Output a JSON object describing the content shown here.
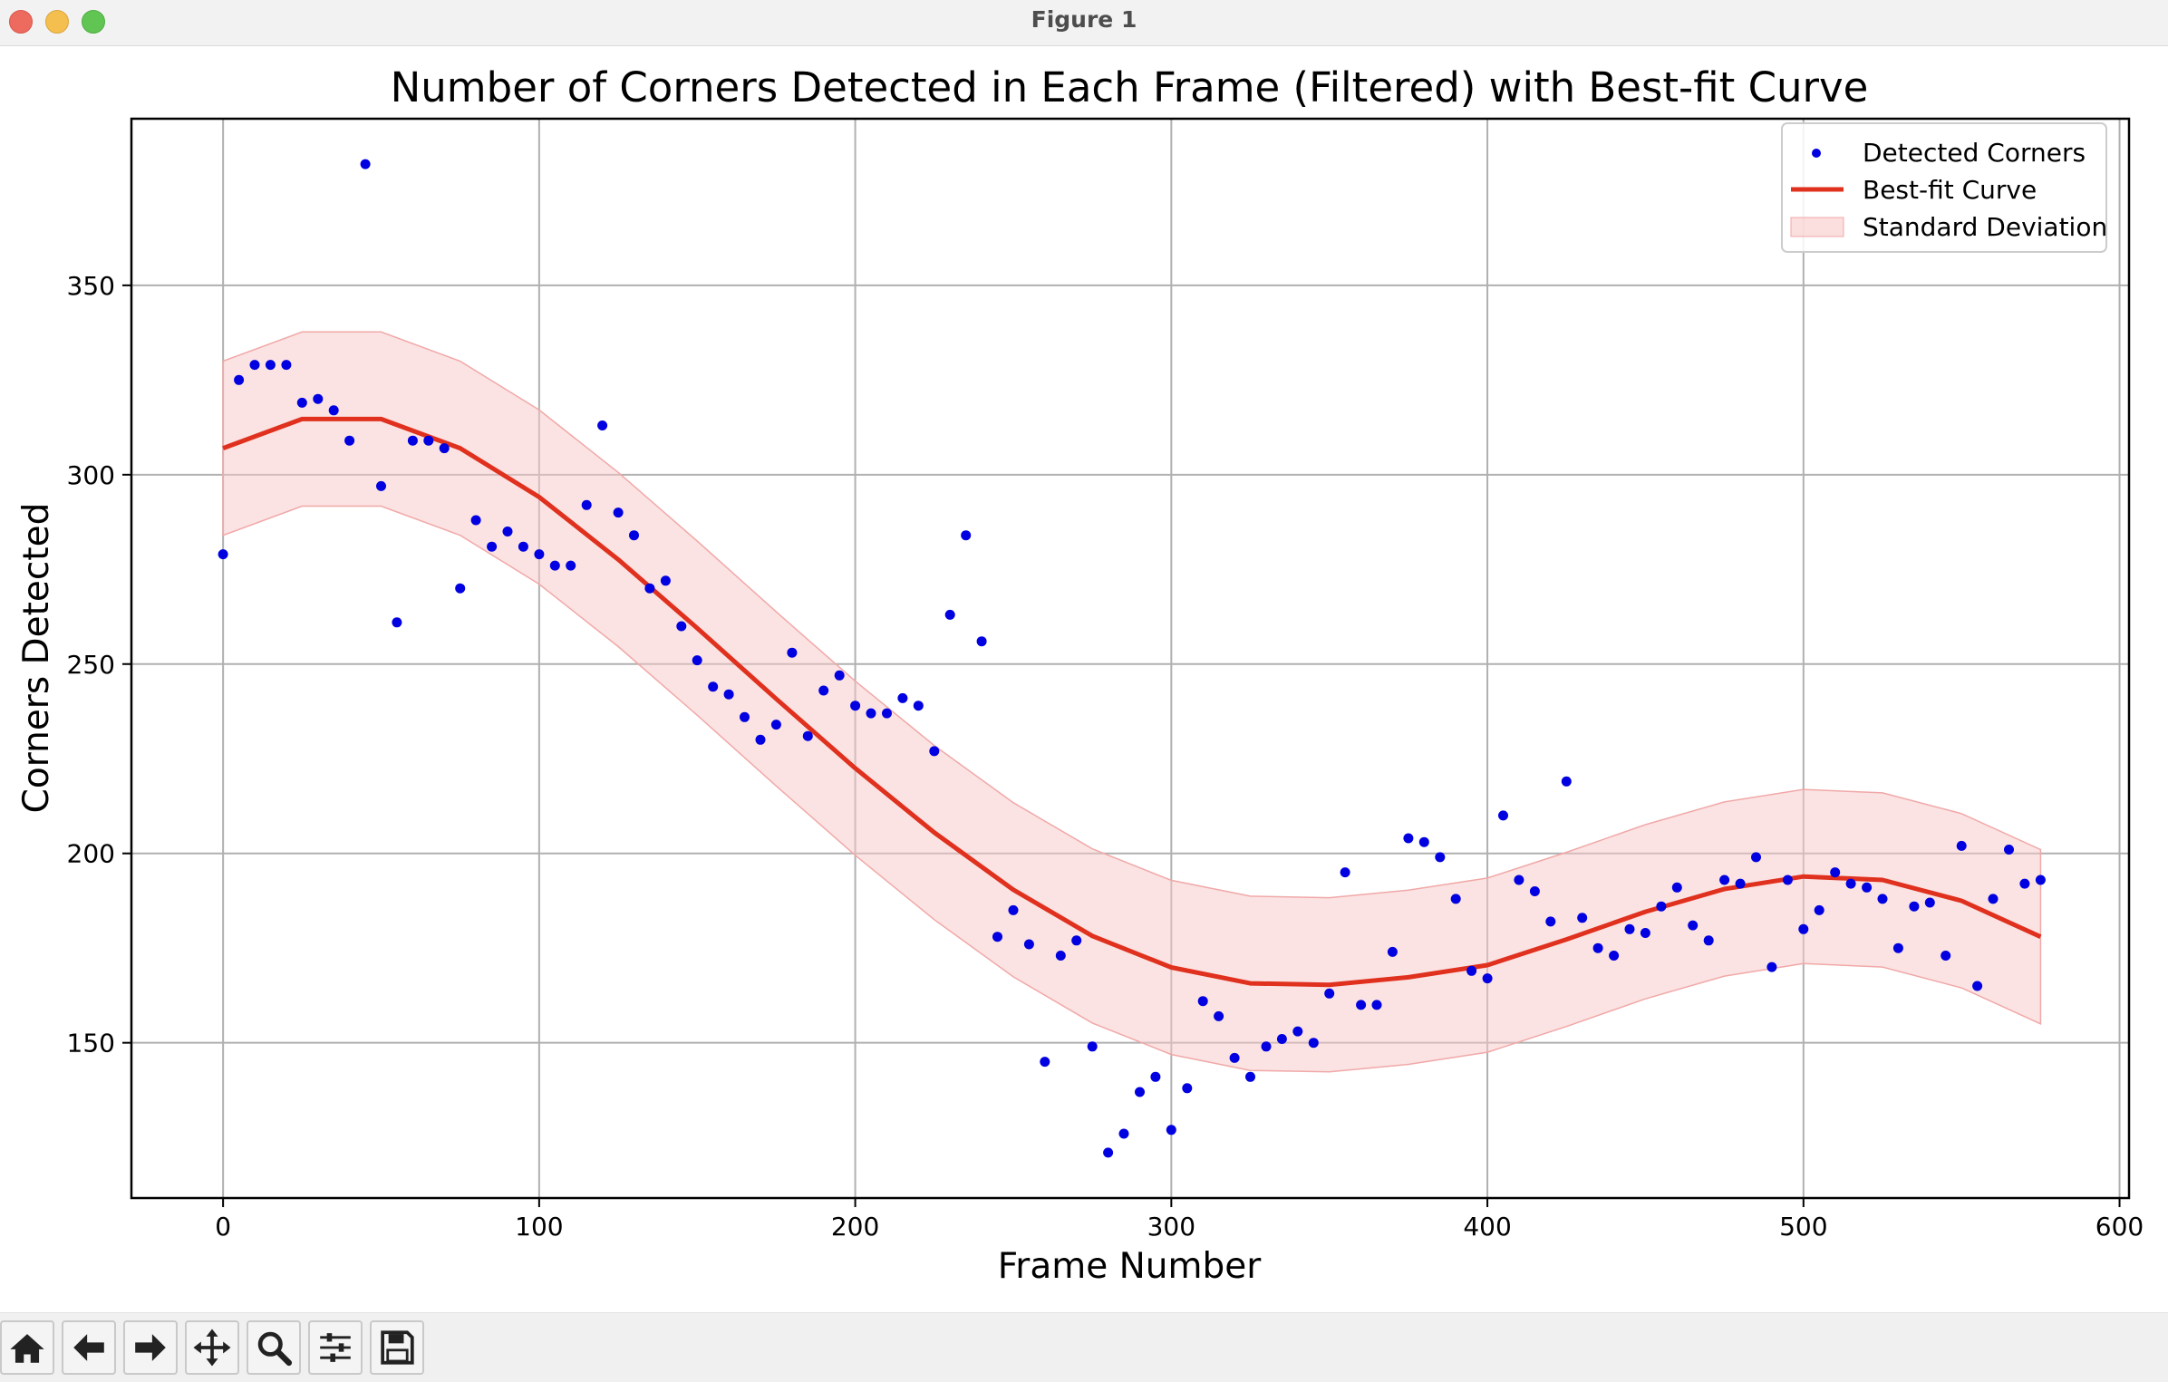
{
  "window": {
    "title": "Figure 1"
  },
  "toolbar": {
    "buttons": [
      {
        "name": "home-icon"
      },
      {
        "name": "back-icon"
      },
      {
        "name": "forward-icon"
      },
      {
        "name": "pan-icon"
      },
      {
        "name": "zoom-icon"
      },
      {
        "name": "configure-subplots-icon"
      },
      {
        "name": "save-icon"
      }
    ]
  },
  "chart_data": {
    "type": "scatter",
    "title": "Number of Corners Detected in Each Frame (Filtered) with Best-fit Curve",
    "xlabel": "Frame Number",
    "ylabel": "Corners Detected",
    "xlim": [
      -29,
      603
    ],
    "ylim": [
      109,
      394
    ],
    "xticks": [
      0,
      100,
      200,
      300,
      400,
      500,
      600
    ],
    "yticks": [
      150,
      200,
      250,
      300,
      350
    ],
    "grid": true,
    "legend_position": "top-right",
    "legend": [
      "Detected Corners",
      "Best-fit Curve",
      "Standard Deviation"
    ],
    "colors": {
      "points": "#0000e0",
      "curve": "#e0301e",
      "band": "#f8c8c8"
    },
    "series": [
      {
        "name": "Detected Corners",
        "kind": "scatter",
        "x": [
          0,
          5,
          10,
          15,
          20,
          25,
          30,
          35,
          40,
          45,
          50,
          55,
          60,
          65,
          70,
          75,
          80,
          85,
          90,
          95,
          100,
          105,
          110,
          115,
          120,
          125,
          130,
          135,
          140,
          145,
          150,
          155,
          160,
          165,
          170,
          175,
          180,
          185,
          190,
          195,
          200,
          205,
          210,
          215,
          220,
          225,
          230,
          235,
          240,
          245,
          250,
          255,
          260,
          265,
          270,
          275,
          280,
          285,
          290,
          295,
          300,
          305,
          310,
          315,
          320,
          325,
          330,
          335,
          340,
          345,
          350,
          355,
          360,
          365,
          370,
          375,
          380,
          385,
          390,
          395,
          400,
          405,
          410,
          415,
          420,
          425,
          430,
          435,
          440,
          445,
          450,
          455,
          460,
          465,
          470,
          475,
          480,
          485,
          490,
          495,
          500,
          505,
          510,
          515,
          520,
          525,
          530,
          535,
          540,
          545,
          550,
          555,
          560,
          565,
          570,
          575
        ],
        "y": [
          279,
          325,
          329,
          329,
          329,
          319,
          320,
          317,
          309,
          382,
          297,
          261,
          309,
          309,
          307,
          270,
          288,
          281,
          285,
          281,
          279,
          276,
          276,
          292,
          313,
          290,
          284,
          270,
          272,
          260,
          251,
          244,
          242,
          236,
          230,
          234,
          253,
          231,
          243,
          247,
          239,
          237,
          237,
          241,
          239,
          227,
          263,
          284,
          256,
          178,
          185,
          176,
          145,
          173,
          177,
          149,
          121,
          126,
          137,
          141,
          127,
          138,
          161,
          157,
          146,
          141,
          149,
          151,
          153,
          150,
          163,
          195,
          160,
          160,
          174,
          204,
          203,
          199,
          188,
          169,
          167,
          210,
          193,
          190,
          182,
          219,
          183,
          175,
          173,
          180,
          179,
          186,
          191,
          181,
          177,
          193,
          192,
          199,
          170,
          193,
          180,
          185,
          195,
          192,
          191,
          188,
          175,
          186,
          187,
          173,
          202,
          165,
          188,
          201,
          192,
          193
        ]
      },
      {
        "name": "Best-fit Curve",
        "kind": "line",
        "x": [
          0,
          25,
          50,
          75,
          100,
          125,
          150,
          175,
          200,
          225,
          250,
          275,
          300,
          325,
          350,
          375,
          400,
          425,
          450,
          475,
          500,
          525,
          550,
          575
        ],
        "y": [
          307,
          314.7,
          314.7,
          307.0,
          294.1,
          277.6,
          259.5,
          240.8,
          222.5,
          205.5,
          190.4,
          178.2,
          169.9,
          165.7,
          165.3,
          167.3,
          170.5,
          177.3,
          184.6,
          190.6,
          193.9,
          193.0,
          187.5,
          178.0
        ]
      },
      {
        "name": "Standard Deviation",
        "kind": "band",
        "x": [
          0,
          25,
          50,
          75,
          100,
          125,
          150,
          175,
          200,
          225,
          250,
          275,
          300,
          325,
          350,
          375,
          400,
          425,
          450,
          475,
          500,
          525,
          550,
          575
        ],
        "lower": [
          284,
          291.7,
          291.7,
          284.0,
          271.1,
          254.6,
          236.5,
          217.8,
          199.5,
          182.5,
          167.4,
          155.2,
          146.9,
          142.7,
          142.3,
          144.3,
          147.5,
          154.3,
          161.6,
          167.6,
          170.9,
          170.0,
          164.5,
          155.0
        ],
        "upper": [
          330,
          337.7,
          337.7,
          330.0,
          317.1,
          300.6,
          282.5,
          263.8,
          245.5,
          228.5,
          213.4,
          201.2,
          192.9,
          188.7,
          188.3,
          190.3,
          193.5,
          200.3,
          207.6,
          213.6,
          216.9,
          216.0,
          210.5,
          201.0
        ]
      }
    ]
  }
}
